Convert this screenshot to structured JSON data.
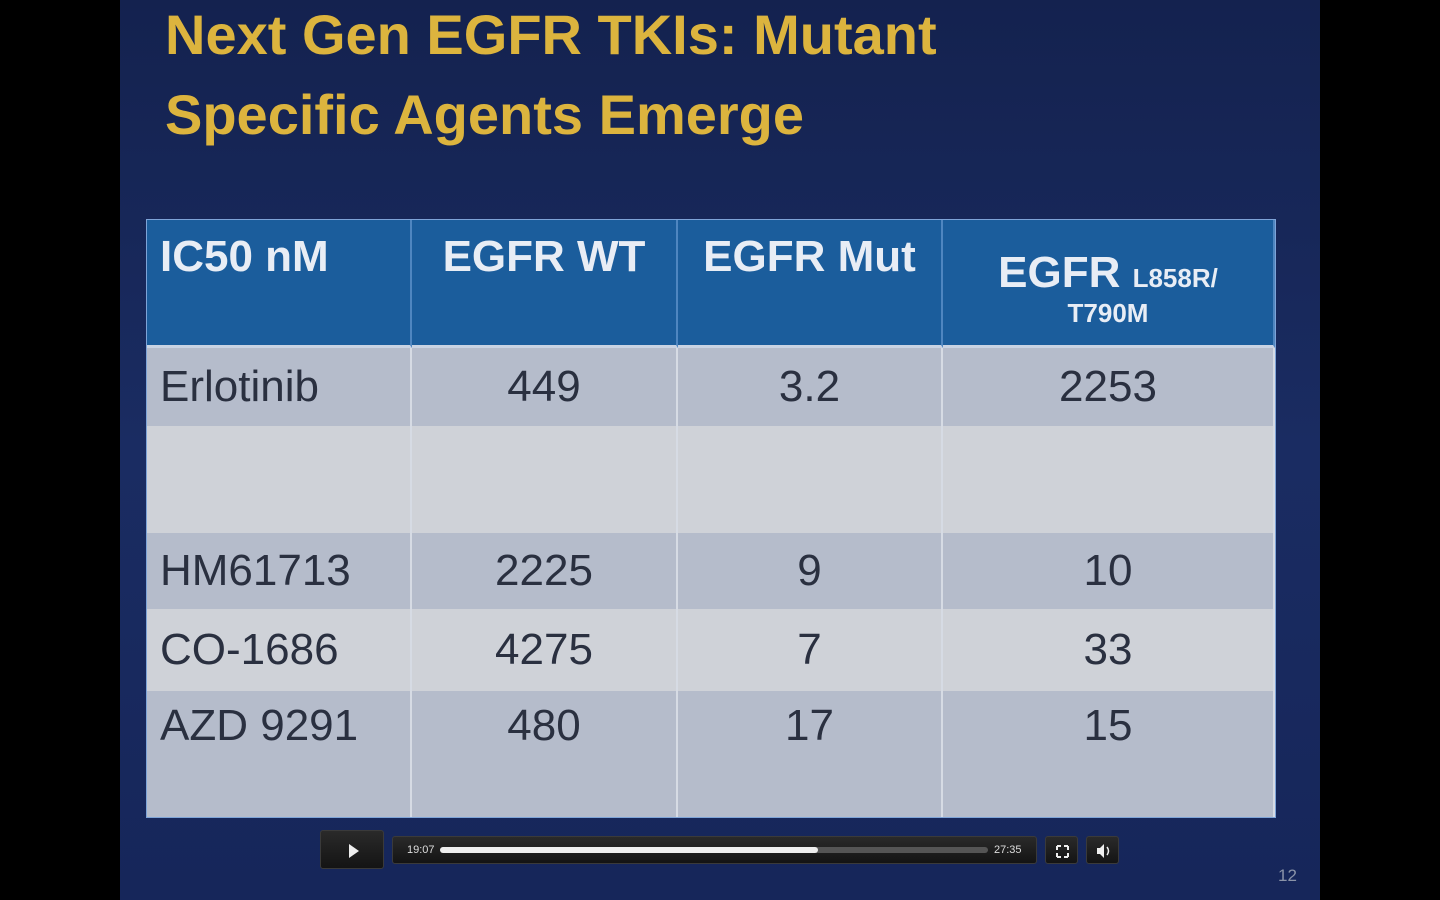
{
  "slide": {
    "title": [
      "Next Gen EGFR TKIs:  Mutant",
      "Specific Agents Emerge"
    ],
    "slide_number": "12"
  },
  "table": {
    "header": [
      "IC50 nM",
      "EGFR WT",
      "EGFR Mut",
      {
        "main": "EGFR",
        "sub": [
          "L858R/",
          "T790M"
        ]
      }
    ],
    "rows": [
      [
        "Erlotinib",
        "449",
        "3.2",
        "2253"
      ],
      [
        "HM61713",
        "2225",
        "9",
        "10"
      ],
      [
        "CO-1686",
        "4275",
        "7",
        "33"
      ],
      [
        "AZD 9291",
        "480",
        "17",
        "15"
      ]
    ]
  },
  "player": {
    "current_time": "19:07",
    "duration": "27:35",
    "progress": 0.69
  }
}
